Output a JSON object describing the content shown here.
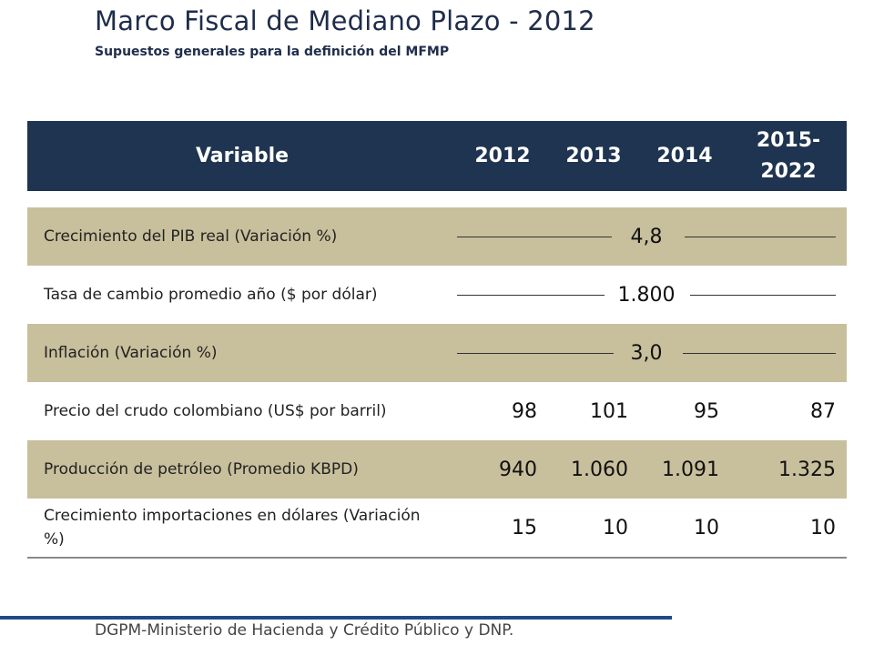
{
  "title": "Marco Fiscal de Mediano Plazo - 2012",
  "subtitle": "Supuestos generales para la definición del MFMP",
  "table": {
    "headers": [
      "Variable",
      "2012",
      "2013",
      "2014",
      "2015-\n2022"
    ],
    "rows": [
      {
        "label": "Crecimiento del PIB real (Variación %)",
        "span_value": "4,8"
      },
      {
        "label": "Tasa de cambio promedio año ($ por dólar)",
        "span_value": "1.800"
      },
      {
        "label": "Inflación (Variación %)",
        "span_value": "3,0"
      },
      {
        "label": "Precio del crudo colombiano (US$ por barril)",
        "values": [
          "98",
          "101",
          "95",
          "87"
        ]
      },
      {
        "label": "Producción de petróleo (Promedio KBPD)",
        "values": [
          "940",
          "1.060",
          "1.091",
          "1.325"
        ]
      },
      {
        "label": "Crecimiento importaciones en dólares (Variación %)",
        "values": [
          "15",
          "10",
          "10",
          "10"
        ]
      }
    ]
  },
  "footer": "DGPM-Ministerio de Hacienda y Crédito Público y DNP.",
  "colors": {
    "header_bg": "#1e3450",
    "band_bg": "#c8bf9c",
    "footer_bar": "#1e4a8a"
  }
}
